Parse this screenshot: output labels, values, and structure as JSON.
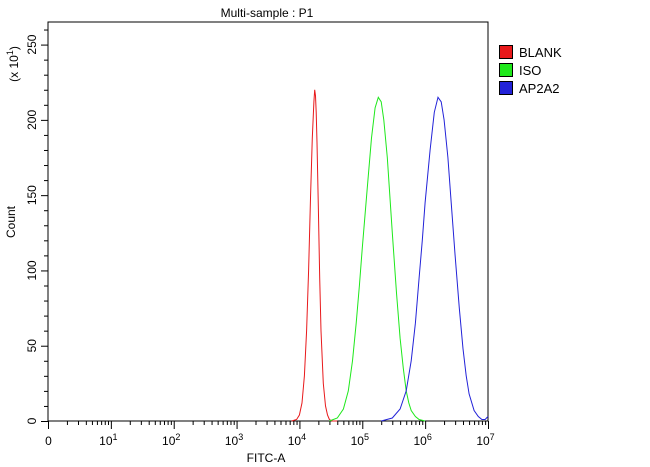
{
  "chart_data": {
    "type": "line",
    "title": "Multi-sample : P1",
    "xlabel": "FITC-A",
    "ylabel": "Count",
    "y_multiplier_label": "(x 10",
    "y_multiplier_exp": "1",
    "x_scale": "log",
    "xlim": [
      1,
      10000000
    ],
    "ylim": [
      0,
      265
    ],
    "y_ticks": [
      0,
      50,
      100,
      150,
      200,
      250
    ],
    "x_ticks": [
      {
        "value": 1,
        "base": "0",
        "exp": ""
      },
      {
        "value": 10,
        "base": "10",
        "exp": "1"
      },
      {
        "value": 100,
        "base": "10",
        "exp": "2"
      },
      {
        "value": 1000,
        "base": "10",
        "exp": "3"
      },
      {
        "value": 10000,
        "base": "10",
        "exp": "4"
      },
      {
        "value": 100000,
        "base": "10",
        "exp": "5"
      },
      {
        "value": 1000000,
        "base": "10",
        "exp": "6"
      },
      {
        "value": 10000000,
        "base": "10",
        "exp": "7"
      }
    ],
    "grid": false,
    "legend_position": "top-right",
    "series": [
      {
        "name": "BLANK",
        "color": "#e8191b",
        "x": [
          7500,
          9000,
          10000,
          11000,
          12000,
          13000,
          14000,
          15000,
          16000,
          17000,
          17500,
          18000,
          18500,
          19000,
          20000,
          21000,
          22000,
          24000,
          26000,
          28000,
          30000,
          33000,
          36000,
          40000
        ],
        "y": [
          0,
          1,
          4,
          12,
          30,
          60,
          100,
          148,
          188,
          212,
          220,
          216,
          205,
          185,
          140,
          95,
          60,
          25,
          10,
          4,
          1,
          0,
          0,
          0
        ]
      },
      {
        "name": "ISO",
        "color": "#1ee81b",
        "x": [
          30000,
          40000,
          50000,
          60000,
          70000,
          80000,
          90000,
          100000,
          120000,
          140000,
          160000,
          180000,
          200000,
          220000,
          250000,
          300000,
          350000,
          400000,
          450000,
          500000,
          550000,
          600000,
          700000,
          800000,
          1000000
        ],
        "y": [
          0,
          2,
          8,
          20,
          40,
          65,
          90,
          115,
          155,
          188,
          208,
          215,
          212,
          200,
          175,
          125,
          85,
          55,
          35,
          20,
          12,
          7,
          3,
          1,
          0
        ]
      },
      {
        "name": "AP2A2",
        "color": "#2222d8",
        "x": [
          200000,
          300000,
          400000,
          500000,
          600000,
          700000,
          800000,
          900000,
          1000000,
          1200000,
          1400000,
          1600000,
          1800000,
          2000000,
          2300000,
          2600000,
          3000000,
          3500000,
          4000000,
          4500000,
          5000000,
          6000000,
          7000000,
          8000000,
          9000000,
          10000000
        ],
        "y": [
          0,
          2,
          8,
          20,
          40,
          65,
          95,
          120,
          145,
          180,
          205,
          215,
          212,
          200,
          175,
          145,
          110,
          75,
          48,
          30,
          18,
          7,
          3,
          1,
          1,
          3
        ]
      }
    ]
  }
}
